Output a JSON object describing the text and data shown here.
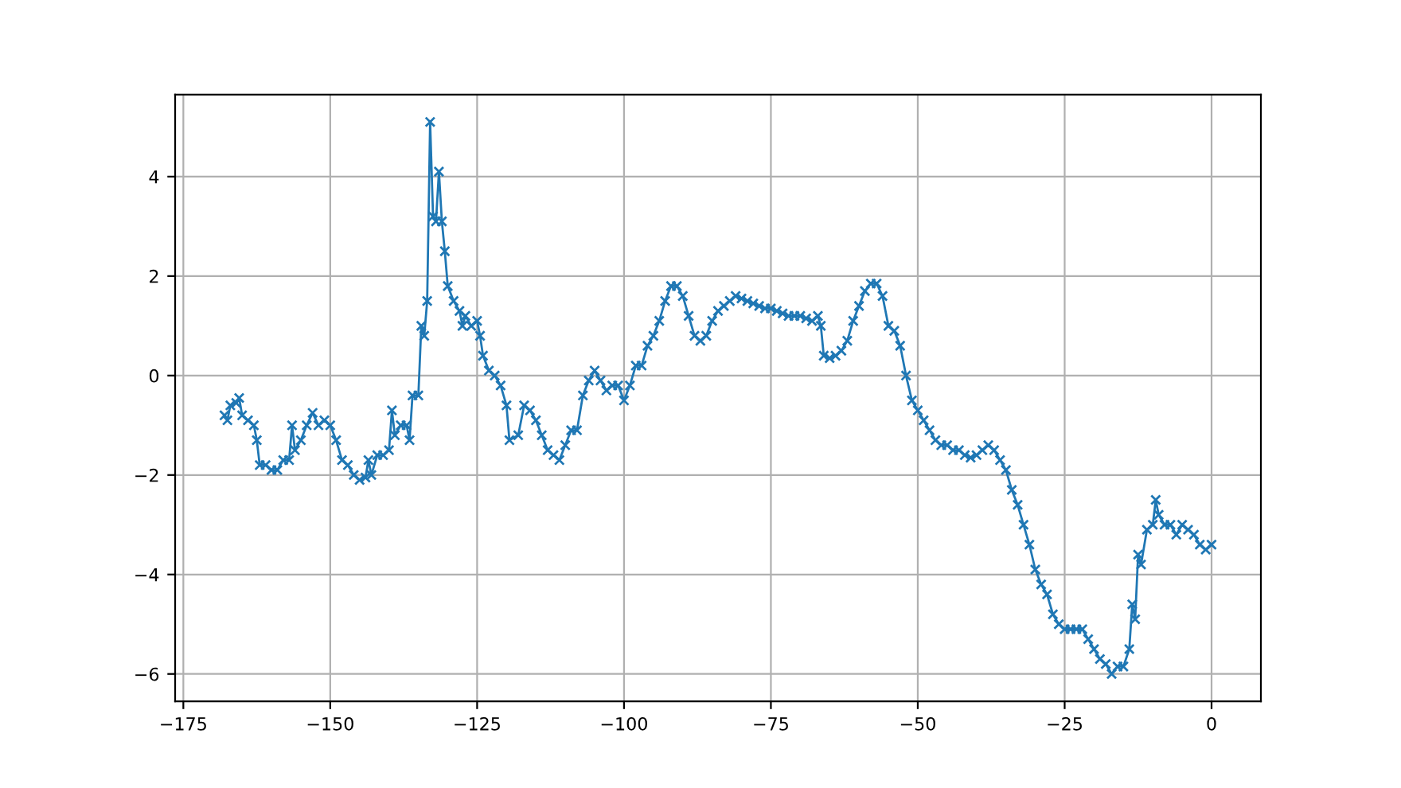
{
  "chart_data": {
    "type": "line",
    "marker": "cross",
    "line_style": "solid",
    "grid": true,
    "xlim": [
      -176.4,
      8.4
    ],
    "ylim": [
      -6.55,
      5.65
    ],
    "xticks": [
      -175,
      -150,
      -125,
      -100,
      -75,
      -50,
      -25,
      0
    ],
    "yticks": [
      -6,
      -4,
      -2,
      0,
      2,
      4
    ],
    "series": [
      {
        "color": "#1f77b4",
        "x": [
          -168,
          -167.5,
          -167,
          -166,
          -165.5,
          -165,
          -164,
          -163,
          -162.5,
          -162,
          -161,
          -160,
          -159,
          -158,
          -157,
          -156.5,
          -156,
          -155,
          -154,
          -153,
          -152,
          -151,
          -150,
          -149,
          -148,
          -147,
          -146,
          -145,
          -144,
          -143.5,
          -143,
          -142,
          -141,
          -140,
          -139.5,
          -139,
          -138,
          -137,
          -136.5,
          -136,
          -135,
          -134.5,
          -134,
          -133.5,
          -133,
          -132.5,
          -132,
          -131.5,
          -131,
          -130.5,
          -130,
          -129,
          -128,
          -127.5,
          -127,
          -126,
          -125,
          -124.5,
          -124,
          -123,
          -122,
          -121,
          -120,
          -119.5,
          -118,
          -117,
          -116,
          -115,
          -114,
          -113,
          -112,
          -111,
          -110,
          -109,
          -108,
          -107,
          -106,
          -105,
          -104,
          -103,
          -102,
          -101,
          -100,
          -99,
          -98,
          -97,
          -96,
          -95,
          -94,
          -93,
          -92,
          -91,
          -90,
          -89,
          -88,
          -87,
          -86,
          -85,
          -84,
          -83,
          -82,
          -81,
          -80,
          -79,
          -78,
          -77,
          -76,
          -75,
          -74,
          -73,
          -72,
          -71,
          -70,
          -69,
          -68,
          -67,
          -66.5,
          -66,
          -65,
          -64,
          -63,
          -62,
          -61,
          -60,
          -59,
          -58,
          -57,
          -56,
          -55,
          -54,
          -53,
          -52,
          -51,
          -50,
          -49,
          -48,
          -47,
          -46,
          -45,
          -44,
          -43,
          -42,
          -41,
          -40,
          -39,
          -38,
          -37,
          -36,
          -35,
          -34,
          -33,
          -32,
          -31,
          -30,
          -29,
          -28,
          -27,
          -26,
          -25,
          -24,
          -23,
          -22,
          -21,
          -20,
          -19,
          -18,
          -17,
          -16,
          -15,
          -14,
          -13.5,
          -13,
          -12.5,
          -12,
          -11,
          -10,
          -9.5,
          -9,
          -8,
          -7,
          -6,
          -5,
          -4,
          -3,
          -2,
          -1,
          0
        ],
        "values": [
          -0.8,
          -0.9,
          -0.6,
          -0.55,
          -0.45,
          -0.8,
          -0.9,
          -1.0,
          -1.3,
          -1.8,
          -1.8,
          -1.9,
          -1.9,
          -1.7,
          -1.7,
          -1.0,
          -1.5,
          -1.3,
          -1.0,
          -0.75,
          -1.0,
          -0.9,
          -1.0,
          -1.3,
          -1.7,
          -1.8,
          -2.0,
          -2.1,
          -2.05,
          -1.7,
          -2.0,
          -1.6,
          -1.6,
          -1.5,
          -0.7,
          -1.2,
          -1.0,
          -1.0,
          -1.3,
          -0.4,
          -0.4,
          1.0,
          0.8,
          1.5,
          5.1,
          3.2,
          3.1,
          4.1,
          3.1,
          2.5,
          1.8,
          1.5,
          1.3,
          1.0,
          1.2,
          1.0,
          1.1,
          0.8,
          0.4,
          0.1,
          0.0,
          -0.2,
          -0.6,
          -1.3,
          -1.2,
          -0.6,
          -0.7,
          -0.9,
          -1.2,
          -1.5,
          -1.6,
          -1.7,
          -1.4,
          -1.1,
          -1.1,
          -0.4,
          -0.1,
          0.1,
          -0.1,
          -0.3,
          -0.2,
          -0.2,
          -0.5,
          -0.2,
          0.2,
          0.2,
          0.6,
          0.8,
          1.1,
          1.5,
          1.8,
          1.8,
          1.6,
          1.2,
          0.8,
          0.7,
          0.8,
          1.1,
          1.3,
          1.4,
          1.5,
          1.6,
          1.55,
          1.5,
          1.45,
          1.4,
          1.35,
          1.35,
          1.3,
          1.25,
          1.2,
          1.2,
          1.2,
          1.15,
          1.1,
          1.2,
          1.0,
          0.4,
          0.35,
          0.4,
          0.5,
          0.7,
          1.1,
          1.4,
          1.7,
          1.85,
          1.85,
          1.6,
          1.0,
          0.9,
          0.6,
          0.0,
          -0.5,
          -0.7,
          -0.9,
          -1.1,
          -1.3,
          -1.4,
          -1.4,
          -1.5,
          -1.5,
          -1.6,
          -1.65,
          -1.6,
          -1.5,
          -1.4,
          -1.5,
          -1.7,
          -1.9,
          -2.3,
          -2.6,
          -3.0,
          -3.4,
          -3.9,
          -4.2,
          -4.4,
          -4.8,
          -5.0,
          -5.1,
          -5.1,
          -5.1,
          -5.1,
          -5.3,
          -5.5,
          -5.7,
          -5.8,
          -6.0,
          -5.85,
          -5.85,
          -5.5,
          -4.6,
          -4.9,
          -3.6,
          -3.8,
          -3.1,
          -3.0,
          -2.5,
          -2.8,
          -3.0,
          -3.0,
          -3.2,
          -3.0,
          -3.1,
          -3.2,
          -3.4,
          -3.5,
          -3.4
        ]
      }
    ]
  }
}
